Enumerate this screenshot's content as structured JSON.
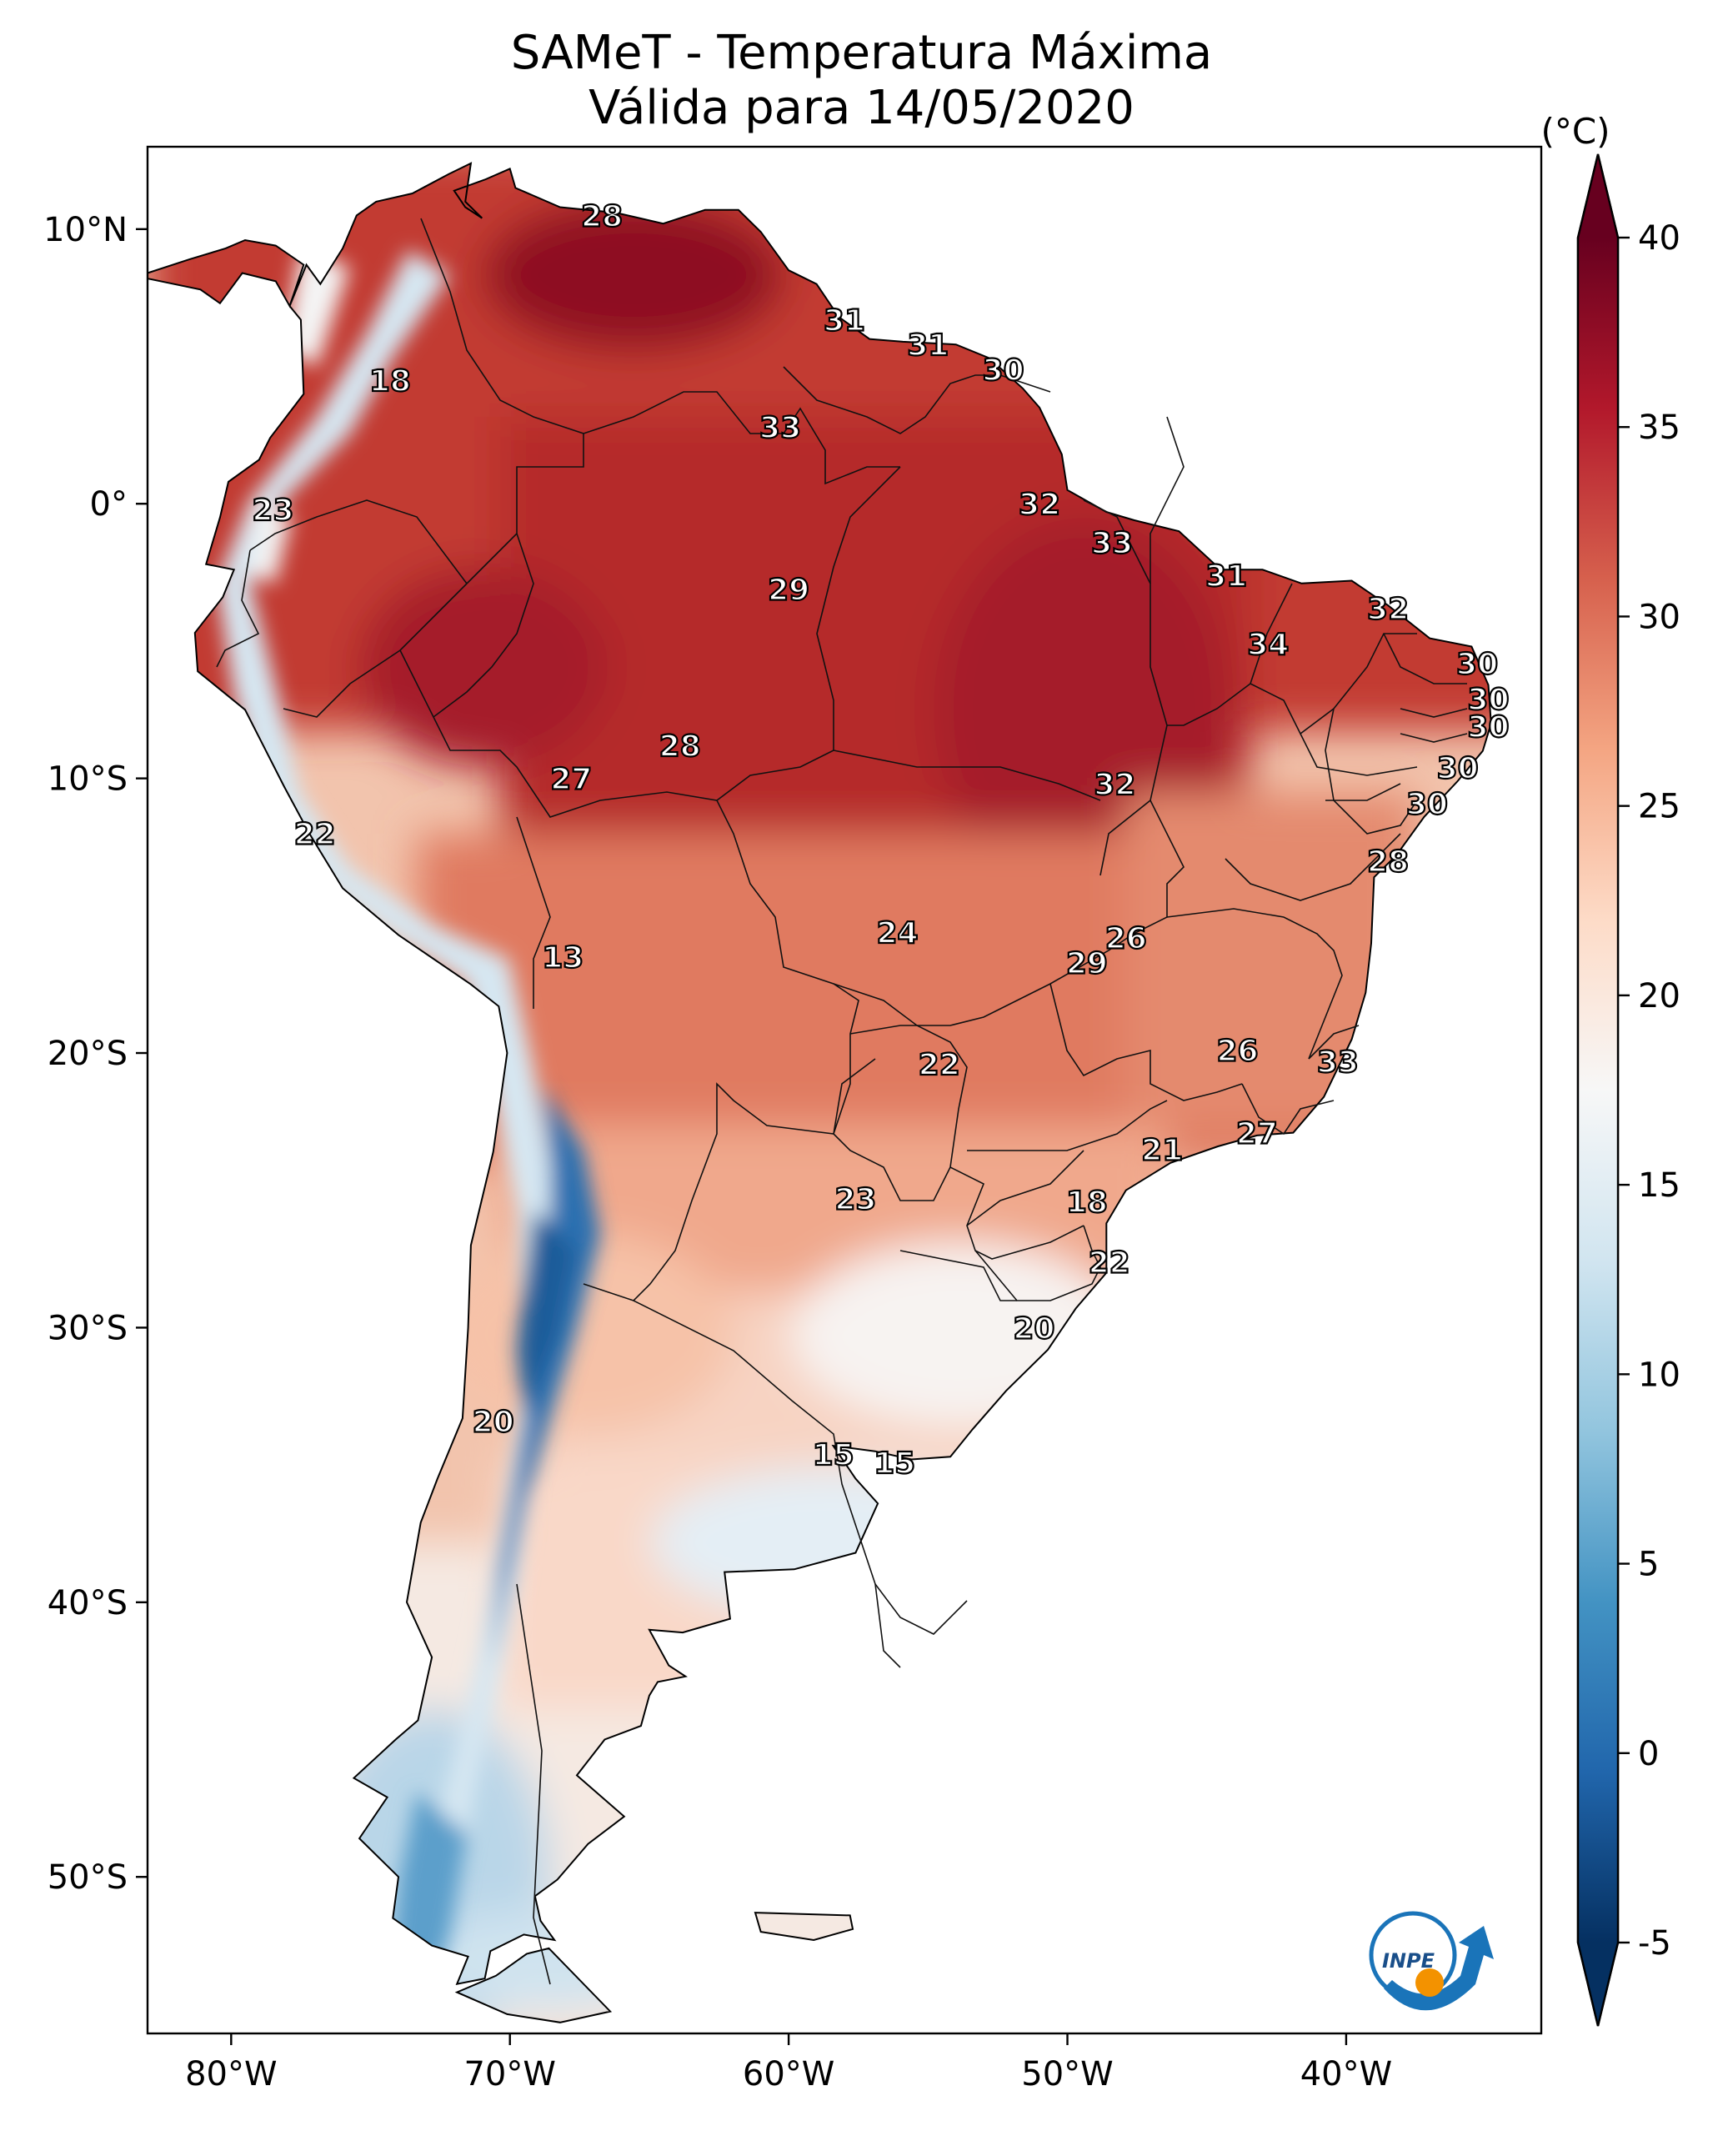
{
  "title": {
    "line1": "SAMeT - Temperatura Máxima",
    "line2": "Válida para 14/05/2020"
  },
  "map": {
    "lon_range": [
      -83,
      -33
    ],
    "lat_range": [
      -55.7,
      13
    ]
  },
  "axes": {
    "x_ticks": [
      {
        "lon": -80,
        "label": "80°W"
      },
      {
        "lon": -70,
        "label": "70°W"
      },
      {
        "lon": -60,
        "label": "60°W"
      },
      {
        "lon": -50,
        "label": "50°W"
      },
      {
        "lon": -40,
        "label": "40°W"
      }
    ],
    "y_ticks": [
      {
        "lat": 10,
        "label": "10°N"
      },
      {
        "lat": 0,
        "label": "0°"
      },
      {
        "lat": -10,
        "label": "10°S"
      },
      {
        "lat": -20,
        "label": "20°S"
      },
      {
        "lat": -30,
        "label": "30°S"
      },
      {
        "lat": -40,
        "label": "40°S"
      },
      {
        "lat": -50,
        "label": "50°S"
      }
    ]
  },
  "colorbar": {
    "unit": "(°C)",
    "min": -5,
    "max": 40,
    "ticks": [
      {
        "value": 40,
        "label": "40"
      },
      {
        "value": 35,
        "label": "35"
      },
      {
        "value": 30,
        "label": "30"
      },
      {
        "value": 25,
        "label": "25"
      },
      {
        "value": 20,
        "label": "20"
      },
      {
        "value": 15,
        "label": "15"
      },
      {
        "value": 10,
        "label": "10"
      },
      {
        "value": 5,
        "label": "5"
      },
      {
        "value": 0,
        "label": "0"
      },
      {
        "value": -5,
        "label": "-5"
      }
    ],
    "colors": [
      "#053061",
      "#2166ac",
      "#4393c3",
      "#92c5de",
      "#d1e5f0",
      "#f7f7f7",
      "#fddbc7",
      "#f4a582",
      "#d6604d",
      "#b2182b",
      "#67001f"
    ]
  },
  "city_labels": [
    {
      "value": "28",
      "lon": -66.7,
      "lat": 10.5
    },
    {
      "value": "18",
      "lon": -74.3,
      "lat": 4.5
    },
    {
      "value": "31",
      "lon": -58.0,
      "lat": 6.7
    },
    {
      "value": "31",
      "lon": -55.0,
      "lat": 5.8
    },
    {
      "value": "30",
      "lon": -52.3,
      "lat": 4.9
    },
    {
      "value": "33",
      "lon": -60.3,
      "lat": 2.8
    },
    {
      "value": "23",
      "lon": -78.5,
      "lat": -0.2
    },
    {
      "value": "32",
      "lon": -51.0,
      "lat": 0.0
    },
    {
      "value": "33",
      "lon": -48.4,
      "lat": -1.4
    },
    {
      "value": "29",
      "lon": -60.0,
      "lat": -3.1
    },
    {
      "value": "31",
      "lon": -44.3,
      "lat": -2.6
    },
    {
      "value": "32",
      "lon": -38.5,
      "lat": -3.8
    },
    {
      "value": "34",
      "lon": -42.8,
      "lat": -5.1
    },
    {
      "value": "30",
      "lon": -35.3,
      "lat": -5.8
    },
    {
      "value": "30",
      "lon": -34.9,
      "lat": -7.1
    },
    {
      "value": "30",
      "lon": -34.9,
      "lat": -8.1
    },
    {
      "value": "28",
      "lon": -63.9,
      "lat": -8.8
    },
    {
      "value": "27",
      "lon": -67.8,
      "lat": -10.0
    },
    {
      "value": "32",
      "lon": -48.3,
      "lat": -10.2
    },
    {
      "value": "30",
      "lon": -36.0,
      "lat": -9.6
    },
    {
      "value": "30",
      "lon": -37.1,
      "lat": -10.9
    },
    {
      "value": "22",
      "lon": -77.0,
      "lat": -12.0
    },
    {
      "value": "28",
      "lon": -38.5,
      "lat": -13.0
    },
    {
      "value": "24",
      "lon": -56.1,
      "lat": -15.6
    },
    {
      "value": "26",
      "lon": -47.9,
      "lat": -15.8
    },
    {
      "value": "29",
      "lon": -49.3,
      "lat": -16.7
    },
    {
      "value": "13",
      "lon": -68.1,
      "lat": -16.5
    },
    {
      "value": "22",
      "lon": -54.6,
      "lat": -20.4
    },
    {
      "value": "26",
      "lon": -43.9,
      "lat": -19.9
    },
    {
      "value": "33",
      "lon": -40.3,
      "lat": -20.3
    },
    {
      "value": "27",
      "lon": -43.2,
      "lat": -22.9
    },
    {
      "value": "21",
      "lon": -46.6,
      "lat": -23.5
    },
    {
      "value": "23",
      "lon": -57.6,
      "lat": -25.3
    },
    {
      "value": "18",
      "lon": -49.3,
      "lat": -25.4
    },
    {
      "value": "22",
      "lon": -48.5,
      "lat": -27.6
    },
    {
      "value": "20",
      "lon": -51.2,
      "lat": -30.0
    },
    {
      "value": "20",
      "lon": -70.6,
      "lat": -33.4
    },
    {
      "value": "15",
      "lon": -58.4,
      "lat": -34.6
    },
    {
      "value": "15",
      "lon": -56.2,
      "lat": -34.9
    }
  ],
  "logo": {
    "text": "INPE"
  }
}
